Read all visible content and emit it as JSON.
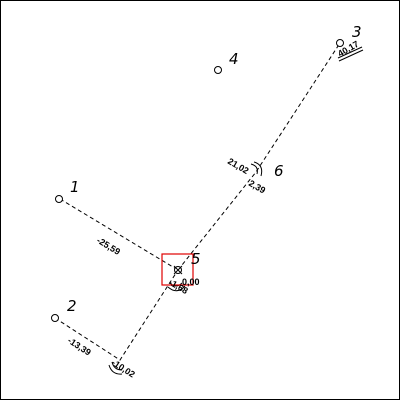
{
  "diagram": {
    "points": [
      {
        "id": "1"
      },
      {
        "id": "2"
      },
      {
        "id": "3"
      },
      {
        "id": "4"
      },
      {
        "id": "5"
      },
      {
        "id": "6"
      }
    ],
    "measurements": {
      "m_1_5": "-25,59",
      "m_2_a": "-13,39",
      "m_2_b": "-10,02",
      "m_3": "40,17",
      "m_6_a": "21,02",
      "m_6_b": "2,39",
      "m_5_a": "-1,68",
      "m_5_b": "0,00"
    },
    "colors": {
      "selection_box": "#e00000",
      "lines": "#000000"
    }
  }
}
